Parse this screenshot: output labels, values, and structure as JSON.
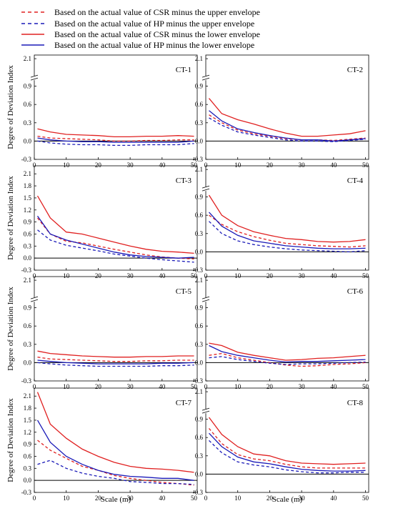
{
  "legend": [
    {
      "label": "Based on the actual value of CSR minus the upper envelope",
      "color": "#e02020",
      "dash": true
    },
    {
      "label": "Based on the actual value of HP minus the upper envelope",
      "color": "#1a1ab8",
      "dash": true
    },
    {
      "label": "Based on the actual value of CSR minus the lower envelope",
      "color": "#e02020",
      "dash": false
    },
    {
      "label": "Based on the actual value of HP minus the lower envelope",
      "color": "#1a1ab8",
      "dash": false
    }
  ],
  "axes": {
    "xlabel": "Scale (m)",
    "ylabel": "Degree of Deviation Index",
    "xticks": [
      "0",
      "10",
      "20",
      "30",
      "40",
      "50"
    ],
    "xlim": [
      0,
      51
    ]
  },
  "chart_data": [
    {
      "type": "line",
      "label": "CT-1",
      "broken_axis": true,
      "yticks": [
        "-0.3",
        "0.0",
        "0.3",
        "0.6",
        "0.9",
        "2.1"
      ],
      "ylim": [
        -0.3,
        2.2
      ],
      "x": [
        1,
        5,
        10,
        15,
        20,
        25,
        30,
        35,
        40,
        45,
        50
      ],
      "series": [
        {
          "name": "Based on the actual value of CSR minus the upper envelope",
          "values": [
            0.08,
            0.05,
            0.04,
            0.03,
            0.02,
            0.0,
            0.0,
            0.01,
            0.01,
            0.02,
            0.02
          ]
        },
        {
          "name": "Based on the actual value of HP minus the upper envelope",
          "values": [
            0.0,
            -0.03,
            -0.05,
            -0.06,
            -0.06,
            -0.07,
            -0.07,
            -0.06,
            -0.06,
            -0.06,
            -0.04
          ]
        },
        {
          "name": "Based on the actual value of CSR minus the lower envelope",
          "values": [
            0.2,
            0.15,
            0.11,
            0.1,
            0.09,
            0.07,
            0.07,
            0.08,
            0.08,
            0.09,
            0.08
          ]
        },
        {
          "name": "Based on the actual value of HP minus the lower envelope",
          "values": [
            0.05,
            0.02,
            0.0,
            -0.01,
            -0.01,
            -0.02,
            -0.02,
            -0.02,
            -0.02,
            -0.02,
            0.0
          ]
        }
      ]
    },
    {
      "type": "line",
      "label": "CT-2",
      "broken_axis": true,
      "yticks": [
        "-0.3",
        "0.0",
        "0.3",
        "0.6",
        "0.9",
        "2.1"
      ],
      "ylim": [
        -0.3,
        2.2
      ],
      "x": [
        1,
        5,
        10,
        15,
        20,
        25,
        30,
        35,
        40,
        45,
        50
      ],
      "series": [
        {
          "name": "Based on the actual value of CSR minus the upper envelope",
          "values": [
            0.43,
            0.3,
            0.18,
            0.12,
            0.08,
            0.04,
            0.02,
            0.02,
            0.01,
            0.03,
            0.05
          ]
        },
        {
          "name": "Based on the actual value of HP minus the upper envelope",
          "values": [
            0.38,
            0.26,
            0.15,
            0.1,
            0.06,
            0.02,
            0.0,
            0.0,
            -0.01,
            0.01,
            0.03
          ]
        },
        {
          "name": "Based on the actual value of CSR minus the lower envelope",
          "values": [
            0.7,
            0.45,
            0.35,
            0.28,
            0.2,
            0.13,
            0.08,
            0.08,
            0.1,
            0.12,
            0.17
          ]
        },
        {
          "name": "Based on the actual value of HP minus the lower envelope",
          "values": [
            0.5,
            0.33,
            0.2,
            0.14,
            0.09,
            0.05,
            0.02,
            0.02,
            0.0,
            0.02,
            0.04
          ]
        }
      ]
    },
    {
      "type": "line",
      "label": "CT-3",
      "broken_axis": false,
      "yticks": [
        "-0.3",
        "0.0",
        "0.3",
        "0.6",
        "0.9",
        "1.2",
        "1.5",
        "1.8",
        "2.1"
      ],
      "ylim": [
        -0.3,
        2.3
      ],
      "x": [
        1,
        5,
        10,
        15,
        20,
        25,
        30,
        35,
        40,
        45,
        50
      ],
      "series": [
        {
          "name": "Based on the actual value of CSR minus the upper envelope",
          "values": [
            1.0,
            0.6,
            0.42,
            0.38,
            0.3,
            0.22,
            0.15,
            0.08,
            0.03,
            0.0,
            -0.02
          ]
        },
        {
          "name": "Based on the actual value of HP minus the upper envelope",
          "values": [
            0.7,
            0.45,
            0.32,
            0.25,
            0.18,
            0.1,
            0.05,
            0.0,
            -0.04,
            -0.07,
            -0.1
          ]
        },
        {
          "name": "Based on the actual value of CSR minus the lower envelope",
          "values": [
            1.55,
            1.0,
            0.65,
            0.6,
            0.5,
            0.4,
            0.3,
            0.22,
            0.17,
            0.15,
            0.12
          ]
        },
        {
          "name": "Based on the actual value of HP minus the lower envelope",
          "values": [
            1.05,
            0.6,
            0.45,
            0.35,
            0.25,
            0.15,
            0.08,
            0.04,
            0.02,
            0.0,
            0.02
          ]
        }
      ]
    },
    {
      "type": "line",
      "label": "CT-4",
      "broken_axis": true,
      "yticks": [
        "-0.3",
        "0.0",
        "0.3",
        "0.6",
        "0.9",
        "2.1"
      ],
      "ylim": [
        -0.3,
        2.2
      ],
      "x": [
        1,
        5,
        10,
        15,
        20,
        25,
        30,
        35,
        40,
        45,
        50
      ],
      "series": [
        {
          "name": "Based on the actual value of CSR minus the upper envelope",
          "values": [
            0.6,
            0.45,
            0.33,
            0.25,
            0.19,
            0.14,
            0.12,
            0.1,
            0.09,
            0.08,
            0.1
          ]
        },
        {
          "name": "Based on the actual value of HP minus the upper envelope",
          "values": [
            0.5,
            0.3,
            0.18,
            0.12,
            0.08,
            0.05,
            0.03,
            0.02,
            0.01,
            0.0,
            0.02
          ]
        },
        {
          "name": "Based on the actual value of CSR minus the lower envelope",
          "values": [
            0.93,
            0.6,
            0.43,
            0.33,
            0.27,
            0.22,
            0.2,
            0.17,
            0.16,
            0.17,
            0.2
          ]
        },
        {
          "name": "Based on the actual value of HP minus the lower envelope",
          "values": [
            0.65,
            0.42,
            0.27,
            0.18,
            0.14,
            0.1,
            0.08,
            0.06,
            0.05,
            0.05,
            0.06
          ]
        }
      ]
    },
    {
      "type": "line",
      "label": "CT-5",
      "broken_axis": true,
      "yticks": [
        "-0.3",
        "0.0",
        "0.3",
        "0.6",
        "0.9",
        "2.1"
      ],
      "ylim": [
        -0.3,
        2.2
      ],
      "x": [
        1,
        5,
        10,
        15,
        20,
        25,
        30,
        35,
        40,
        45,
        50
      ],
      "series": [
        {
          "name": "Based on the actual value of CSR minus the upper envelope",
          "values": [
            0.09,
            0.06,
            0.05,
            0.04,
            0.03,
            0.02,
            0.02,
            0.03,
            0.03,
            0.04,
            0.04
          ]
        },
        {
          "name": "Based on the actual value of HP minus the upper envelope",
          "values": [
            0.0,
            -0.02,
            -0.04,
            -0.05,
            -0.06,
            -0.06,
            -0.06,
            -0.06,
            -0.05,
            -0.05,
            -0.04
          ]
        },
        {
          "name": "Based on the actual value of CSR minus the lower envelope",
          "values": [
            0.19,
            0.15,
            0.13,
            0.11,
            0.1,
            0.09,
            0.09,
            0.1,
            0.1,
            0.11,
            0.11
          ]
        },
        {
          "name": "Based on the actual value of HP minus the lower envelope",
          "values": [
            0.04,
            0.02,
            0.0,
            -0.01,
            -0.02,
            -0.02,
            -0.02,
            -0.02,
            -0.01,
            -0.01,
            0.0
          ]
        }
      ]
    },
    {
      "type": "line",
      "label": "CT-6",
      "broken_axis": true,
      "yticks": [
        "-0.3",
        "0.0",
        "0.3",
        "0.6",
        "0.9",
        "2.1"
      ],
      "ylim": [
        -0.3,
        2.2
      ],
      "x": [
        1,
        5,
        10,
        15,
        20,
        25,
        30,
        35,
        40,
        45,
        50
      ],
      "series": [
        {
          "name": "Based on the actual value of CSR minus the upper envelope",
          "values": [
            0.12,
            0.15,
            0.08,
            0.04,
            0.0,
            -0.04,
            -0.06,
            -0.05,
            -0.03,
            -0.02,
            0.0
          ]
        },
        {
          "name": "Based on the actual value of HP minus the upper envelope",
          "values": [
            0.08,
            0.1,
            0.05,
            0.02,
            -0.01,
            -0.03,
            -0.02,
            -0.02,
            -0.01,
            0.0,
            0.01
          ]
        },
        {
          "name": "Based on the actual value of CSR minus the lower envelope",
          "values": [
            0.32,
            0.28,
            0.17,
            0.12,
            0.08,
            0.04,
            0.05,
            0.07,
            0.08,
            0.1,
            0.12
          ]
        },
        {
          "name": "Based on the actual value of HP minus the lower envelope",
          "values": [
            0.28,
            0.18,
            0.12,
            0.08,
            0.04,
            0.01,
            0.02,
            0.02,
            0.03,
            0.04,
            0.05
          ]
        }
      ]
    },
    {
      "type": "line",
      "label": "CT-7",
      "broken_axis": false,
      "yticks": [
        "-0.3",
        "0.0",
        "0.3",
        "0.6",
        "0.9",
        "1.2",
        "1.5",
        "1.8",
        "2.1"
      ],
      "ylim": [
        -0.3,
        2.3
      ],
      "x": [
        1,
        5,
        10,
        15,
        20,
        25,
        30,
        35,
        40,
        45,
        50
      ],
      "series": [
        {
          "name": "Based on the actual value of CSR minus the upper envelope",
          "values": [
            1.0,
            0.75,
            0.55,
            0.35,
            0.25,
            0.12,
            0.05,
            0.0,
            -0.05,
            -0.08,
            -0.12
          ]
        },
        {
          "name": "Based on the actual value of HP minus the upper envelope",
          "values": [
            0.4,
            0.5,
            0.3,
            0.18,
            0.1,
            0.05,
            -0.03,
            -0.05,
            -0.08,
            -0.08,
            -0.1
          ]
        },
        {
          "name": "Based on the actual value of CSR minus the lower envelope",
          "values": [
            2.2,
            1.4,
            1.05,
            0.78,
            0.6,
            0.45,
            0.35,
            0.3,
            0.28,
            0.25,
            0.2
          ]
        },
        {
          "name": "Based on the actual value of HP minus the lower envelope",
          "values": [
            1.5,
            0.95,
            0.6,
            0.4,
            0.25,
            0.15,
            0.1,
            0.08,
            0.05,
            0.05,
            0.0
          ]
        }
      ]
    },
    {
      "type": "line",
      "label": "CT-8",
      "broken_axis": true,
      "yticks": [
        "-0.3",
        "0.0",
        "0.3",
        "0.6",
        "0.9",
        "2.1"
      ],
      "ylim": [
        -0.3,
        2.2
      ],
      "x": [
        1,
        5,
        10,
        15,
        20,
        25,
        30,
        35,
        40,
        45,
        50
      ],
      "series": [
        {
          "name": "Based on the actual value of CSR minus the upper envelope",
          "values": [
            0.75,
            0.5,
            0.32,
            0.25,
            0.22,
            0.16,
            0.12,
            0.1,
            0.1,
            0.1,
            0.1
          ]
        },
        {
          "name": "Based on the actual value of HP minus the upper envelope",
          "values": [
            0.55,
            0.35,
            0.2,
            0.15,
            0.12,
            0.07,
            0.04,
            0.02,
            0.02,
            0.03,
            0.03
          ]
        },
        {
          "name": "Based on the actual value of CSR minus the lower envelope",
          "values": [
            0.93,
            0.65,
            0.45,
            0.33,
            0.3,
            0.22,
            0.18,
            0.17,
            0.16,
            0.17,
            0.18
          ]
        },
        {
          "name": "Based on the actual value of HP minus the lower envelope",
          "values": [
            0.67,
            0.45,
            0.28,
            0.2,
            0.17,
            0.12,
            0.08,
            0.06,
            0.05,
            0.05,
            0.06
          ]
        }
      ]
    }
  ]
}
